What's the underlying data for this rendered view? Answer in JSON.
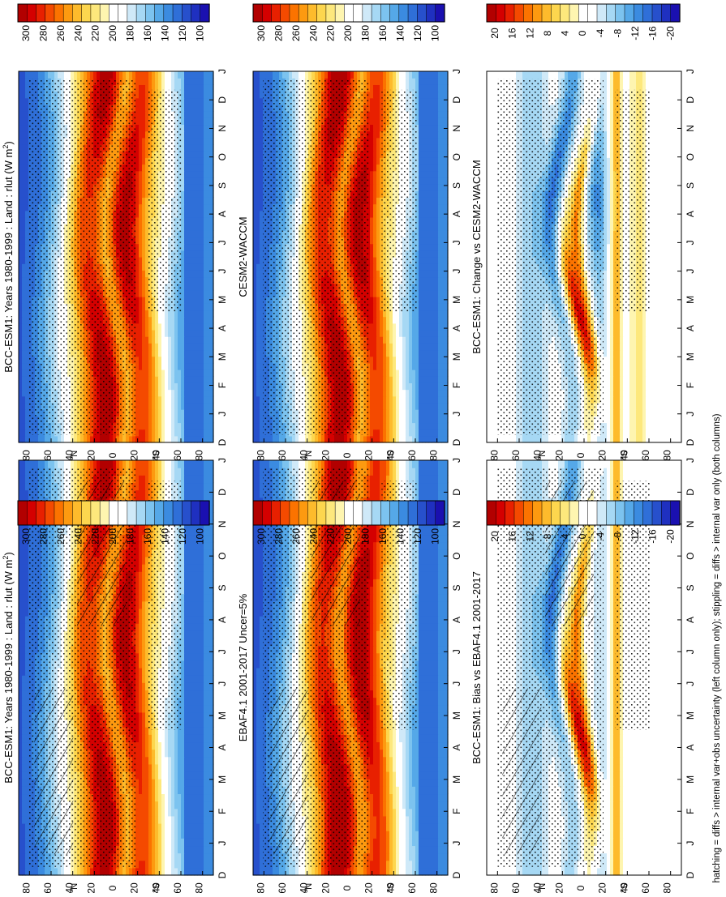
{
  "figure": {
    "footnote": "hatching = diffs > internal var+obs uncertainty (left column only); stippling = diffs > internal var only (both columns)"
  },
  "colors": {
    "abs_scale": [
      "#b20000",
      "#d40000",
      "#e82000",
      "#f44a00",
      "#fb7300",
      "#fd9a10",
      "#fdbb2c",
      "#fdd64e",
      "#fde87c",
      "#fef5b0",
      "#ffffff",
      "#ffffff",
      "#cfe9f8",
      "#a6d8f4",
      "#7cc3ef",
      "#55a8e8",
      "#3b8be0",
      "#2f6fd8",
      "#2750cc",
      "#1f30c0",
      "#1a10b0"
    ],
    "diff_scale": [
      "#b20000",
      "#d40000",
      "#e82000",
      "#f44a00",
      "#fb7300",
      "#fd9a10",
      "#fdbb2c",
      "#fdd64e",
      "#fde87c",
      "#fef5b0",
      "#ffffff",
      "#ffffff",
      "#cfe9f8",
      "#a6d8f4",
      "#7cc3ef",
      "#55a8e8",
      "#3b8be0",
      "#2f6fd8",
      "#2750cc",
      "#1f30c0",
      "#1a10b0"
    ]
  },
  "chart_data": [
    {
      "type": "heatmap",
      "id": "p1",
      "title": "BCC-ESM1: Years 1980-1999 : Land : rlut (W m",
      "title_sup": "2",
      "title_end": ")",
      "x_ticks": [
        "D",
        "J",
        "F",
        "M",
        "A",
        "M",
        "J",
        "J",
        "A",
        "S",
        "O",
        "N",
        "D",
        "J"
      ],
      "y_ticks": [
        "80",
        "60",
        "40",
        "20",
        "0",
        "20",
        "40",
        "60",
        "80"
      ],
      "y_hemi_n": "N",
      "y_hemi_s": "S",
      "colorbar_labels": [
        "300",
        "280",
        "260",
        "240",
        "220",
        "200",
        "180",
        "160",
        "140",
        "120",
        "100"
      ],
      "zlim": [
        90,
        310
      ],
      "field": "abs_model",
      "hatching": true,
      "stippling": true
    },
    {
      "type": "heatmap",
      "id": "p2",
      "title": "BCC-ESM1: Years 1980-1999 : Land : rlut (W m",
      "title_sup": "2",
      "title_end": ")",
      "x_ticks": [
        "D",
        "J",
        "F",
        "M",
        "A",
        "M",
        "J",
        "J",
        "A",
        "S",
        "O",
        "N",
        "D",
        "J"
      ],
      "y_ticks": [
        "80",
        "60",
        "40",
        "20",
        "0",
        "20",
        "40",
        "60",
        "80"
      ],
      "y_hemi_n": "N",
      "y_hemi_s": "S",
      "colorbar_labels": [
        "300",
        "280",
        "260",
        "240",
        "220",
        "200",
        "180",
        "160",
        "140",
        "120",
        "100"
      ],
      "zlim": [
        90,
        310
      ],
      "field": "abs_model",
      "hatching": false,
      "stippling": true
    },
    {
      "type": "heatmap",
      "id": "p3",
      "title": "EBAF4.1 2001-2017 Uncer=5%",
      "x_ticks": [
        "D",
        "J",
        "F",
        "M",
        "A",
        "M",
        "J",
        "J",
        "A",
        "S",
        "O",
        "N",
        "D",
        "J"
      ],
      "y_ticks": [
        "80",
        "60",
        "40",
        "20",
        "0",
        "20",
        "40",
        "60",
        "80"
      ],
      "y_hemi_n": "N",
      "y_hemi_s": "S",
      "colorbar_labels": [
        "300",
        "280",
        "260",
        "240",
        "220",
        "200",
        "180",
        "160",
        "140",
        "120",
        "100"
      ],
      "zlim": [
        90,
        310
      ],
      "field": "abs_obs",
      "hatching": true,
      "stippling": true
    },
    {
      "type": "heatmap",
      "id": "p4",
      "title": "CESM2-WACCM",
      "x_ticks": [
        "D",
        "J",
        "F",
        "M",
        "A",
        "M",
        "J",
        "J",
        "A",
        "S",
        "O",
        "N",
        "D",
        "J"
      ],
      "y_ticks": [
        "80",
        "60",
        "40",
        "20",
        "0",
        "20",
        "40",
        "60",
        "80"
      ],
      "y_hemi_n": "N",
      "y_hemi_s": "S",
      "colorbar_labels": [
        "300",
        "280",
        "260",
        "240",
        "220",
        "200",
        "180",
        "160",
        "140",
        "120",
        "100"
      ],
      "zlim": [
        90,
        310
      ],
      "field": "abs_ref",
      "hatching": false,
      "stippling": true
    },
    {
      "type": "heatmap",
      "id": "p5",
      "title": "BCC-ESM1: Bias vs EBAF4.1 2001-2017",
      "x_ticks": [
        "D",
        "J",
        "F",
        "M",
        "A",
        "M",
        "J",
        "J",
        "A",
        "S",
        "O",
        "N",
        "D",
        "J"
      ],
      "y_ticks": [
        "80",
        "60",
        "40",
        "20",
        "0",
        "20",
        "40",
        "60",
        "80"
      ],
      "y_hemi_n": "N",
      "y_hemi_s": "S",
      "colorbar_labels": [
        "20",
        "16",
        "12",
        "8",
        "4",
        "0",
        "-4",
        "-8",
        "-12",
        "-16",
        "-20"
      ],
      "zlim": [
        -22,
        22
      ],
      "field": "bias",
      "hatching": true,
      "stippling": true
    },
    {
      "type": "heatmap",
      "id": "p6",
      "title": "BCC-ESM1: Change vs CESM2-WACCM",
      "x_ticks": [
        "D",
        "J",
        "F",
        "M",
        "A",
        "M",
        "J",
        "J",
        "A",
        "S",
        "O",
        "N",
        "D",
        "J"
      ],
      "y_ticks": [
        "80",
        "60",
        "40",
        "20",
        "0",
        "20",
        "40",
        "60",
        "80"
      ],
      "y_hemi_n": "N",
      "y_hemi_s": "S",
      "colorbar_labels": [
        "20",
        "16",
        "12",
        "8",
        "4",
        "0",
        "-4",
        "-8",
        "-12",
        "-16",
        "-20"
      ],
      "zlim": [
        -22,
        22
      ],
      "field": "change",
      "hatching": false,
      "stippling": true
    }
  ]
}
